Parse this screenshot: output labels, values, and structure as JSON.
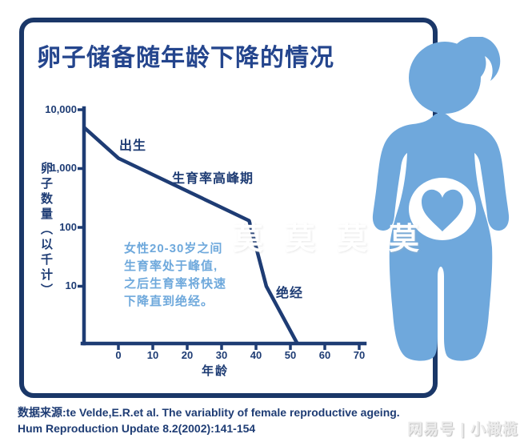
{
  "title": "卵子储备随年龄下降的情况",
  "colors": {
    "navy_line": "#1e3c74",
    "border_navy": "#1a3768",
    "title_navy": "#24458d",
    "figure_blue": "#6fa8dc",
    "callout_blue": "#6fa9dc",
    "publisher_gray": "#ececec"
  },
  "chart_data": {
    "type": "line",
    "title": "卵子储备随年龄下降的情况",
    "xlabel": "年龄",
    "ylabel": "卵子数量（以千计）",
    "y_scale": "log",
    "ylim": [
      1,
      10000
    ],
    "xlim": [
      -10,
      70
    ],
    "x_ticks": [
      "0",
      "10",
      "20",
      "30",
      "40",
      "50",
      "60",
      "70"
    ],
    "y_ticks": [
      "10,000",
      "1,000",
      "100",
      "10"
    ],
    "grid": false,
    "legend": false,
    "series": [
      {
        "name": "卵子数量（以千计）",
        "points": [
          {
            "age": -10,
            "value": 5000
          },
          {
            "age": 0,
            "value": 1500
          },
          {
            "age": 38,
            "value": 130
          },
          {
            "age": 43,
            "value": 10
          },
          {
            "age": 52,
            "value": 1
          }
        ]
      }
    ],
    "annotations": [
      "出生",
      "生育率高峰期",
      "绝经"
    ]
  },
  "chart_labels": {
    "birth": "出生",
    "peak_fertility": "生育率高峰期",
    "menopause": "绝经",
    "x_axis": "年龄",
    "y_axis": "卵子数量（以千计）"
  },
  "callout": {
    "lines": [
      "女性20-30岁之间",
      "生育率处于峰值,",
      "之后生育率将快速",
      "下降直到绝经。"
    ]
  },
  "source": {
    "line1": "数据来源:te Velde,E.R.et al. The variablity of female reproductive ageing.",
    "line2": "Hum Reproduction Update 8.2(2002):141-154"
  },
  "watermarks": {
    "publisher": "网易号 | 小橄榄",
    "overlay_text": "莫莫莫莫"
  },
  "figure_icon": "pregnant-woman-with-heart-in-belly"
}
